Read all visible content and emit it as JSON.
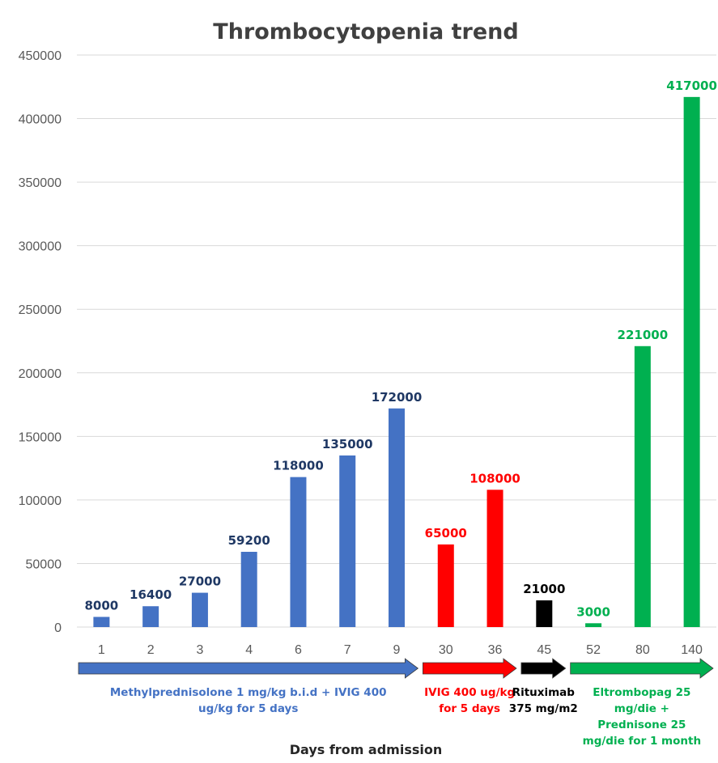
{
  "chart_data": {
    "type": "bar",
    "title": "Thrombocytopenia trend",
    "xlabel": "Days from admission",
    "ylabel": "",
    "ylim": [
      0,
      450000
    ],
    "yticks": [
      "0",
      "50000",
      "100000",
      "150000",
      "200000",
      "250000",
      "300000",
      "350000",
      "400000",
      "450000"
    ],
    "grid": true,
    "categories": [
      "1",
      "2",
      "3",
      "4",
      "6",
      "7",
      "9",
      "30",
      "36",
      "45",
      "52",
      "80",
      "140"
    ],
    "values": [
      8000,
      16400,
      27000,
      59200,
      118000,
      135000,
      172000,
      65000,
      108000,
      21000,
      3000,
      221000,
      417000
    ],
    "bar_colors": [
      "#4472C4",
      "#4472C4",
      "#4472C4",
      "#4472C4",
      "#4472C4",
      "#4472C4",
      "#4472C4",
      "#FF0000",
      "#FF0000",
      "#000000",
      "#00B050",
      "#00B050",
      "#00B050"
    ],
    "label_colors": [
      "#1F3864",
      "#1F3864",
      "#1F3864",
      "#1F3864",
      "#1F3864",
      "#1F3864",
      "#1F3864",
      "#FF0000",
      "#FF0000",
      "#000000",
      "#00B050",
      "#00B050",
      "#00B050"
    ],
    "treatments": [
      {
        "from": 0,
        "to": 6,
        "color": "#4472C4",
        "text_color": "#4472C4",
        "lines": [
          "Methylprednisolone 1 mg/kg b.i.d  + IVIG 400",
          "ug/kg for 5 days"
        ]
      },
      {
        "from": 7,
        "to": 8,
        "color": "#FF0000",
        "text_color": "#FF0000",
        "lines": [
          "IVIG 400 ug/kg",
          "for 5 days"
        ]
      },
      {
        "from": 9,
        "to": 9,
        "color": "#000000",
        "text_color": "#000000",
        "lines": [
          "Rituximab",
          "375 mg/m2"
        ]
      },
      {
        "from": 10,
        "to": 12,
        "color": "#00B050",
        "text_color": "#00B050",
        "lines": [
          "Eltrombopag 25",
          "mg/die +",
          "Prednisone 25",
          "mg/die for 1 month"
        ]
      }
    ]
  }
}
